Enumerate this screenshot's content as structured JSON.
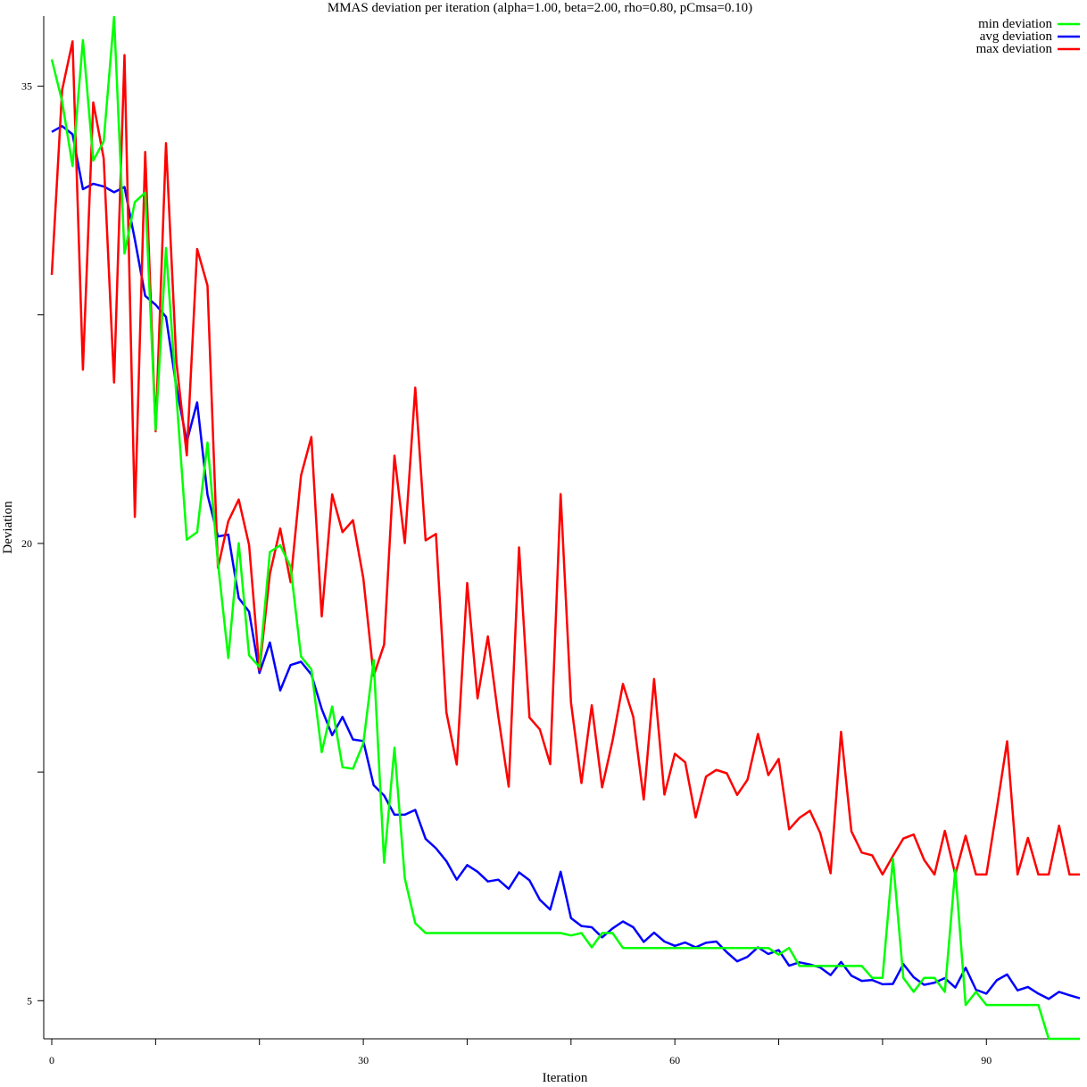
{
  "chart_data": {
    "type": "line",
    "title": "MMAS deviation per iteration (alpha=1.00, beta=2.00, rho=0.80, pCmsa=0.10)",
    "xlabel": "Iteration",
    "ylabel": "Deviation",
    "xlim": [
      0,
      99
    ],
    "ylim": [
      3.75,
      37.3
    ],
    "x_ticks": [
      0,
      10,
      20,
      30,
      40,
      50,
      60,
      70,
      80,
      90
    ],
    "x_tick_labels": [
      "0",
      "",
      "",
      "30",
      "",
      "",
      "60",
      "",
      "",
      "90"
    ],
    "y_ticks": [
      5,
      12.5,
      20,
      27.5,
      35
    ],
    "y_tick_labels": [
      "5",
      "",
      "20",
      "",
      "35"
    ],
    "grid": false,
    "legend_position": "top-right",
    "series": [
      {
        "name": "min deviation",
        "color": "#00ff00",
        "values": [
          35.88,
          34.5,
          32.38,
          36.51,
          32.56,
          33.19,
          37.27,
          29.51,
          31.2,
          31.51,
          23.73,
          29.69,
          24.87,
          20.12,
          20.37,
          23.31,
          19.37,
          16.24,
          20.01,
          16.33,
          15.95,
          19.72,
          19.94,
          19.23,
          16.29,
          15.87,
          13.15,
          14.65,
          12.66,
          12.61,
          13.44,
          16.18,
          9.53,
          13.3,
          9.01,
          7.54,
          7.22,
          7.22,
          7.22,
          7.22,
          7.22,
          7.22,
          7.22,
          7.22,
          7.22,
          7.22,
          7.22,
          7.22,
          7.22,
          7.22,
          7.14,
          7.22,
          6.75,
          7.22,
          7.22,
          6.73,
          6.73,
          6.73,
          6.73,
          6.73,
          6.73,
          6.73,
          6.73,
          6.73,
          6.73,
          6.73,
          6.73,
          6.73,
          6.73,
          6.73,
          6.51,
          6.73,
          6.14,
          6.14,
          6.14,
          6.14,
          6.14,
          6.14,
          6.14,
          5.75,
          5.75,
          9.66,
          5.75,
          5.29,
          5.75,
          5.75,
          5.29,
          9.3,
          4.86,
          5.29,
          4.86,
          4.86,
          4.86,
          4.86,
          4.86,
          4.86,
          3.75,
          3.75,
          3.75,
          3.75
        ]
      },
      {
        "name": "avg deviation",
        "color": "#0000ff",
        "values": [
          33.5,
          33.69,
          33.42,
          31.62,
          31.8,
          31.71,
          31.52,
          31.69,
          29.97,
          28.12,
          27.83,
          27.43,
          25.14,
          23.34,
          24.63,
          21.6,
          20.23,
          20.29,
          18.21,
          17.76,
          15.75,
          16.75,
          15.18,
          16.01,
          16.12,
          15.7,
          14.57,
          13.71,
          14.31,
          13.57,
          13.52,
          12.07,
          11.73,
          11.1,
          11.1,
          11.26,
          10.31,
          10.0,
          9.58,
          8.97,
          9.45,
          9.23,
          8.91,
          8.97,
          8.67,
          9.21,
          8.95,
          8.31,
          7.99,
          9.23,
          7.71,
          7.45,
          7.41,
          7.08,
          7.37,
          7.6,
          7.41,
          6.93,
          7.23,
          6.94,
          6.8,
          6.91,
          6.75,
          6.9,
          6.94,
          6.59,
          6.29,
          6.44,
          6.75,
          6.53,
          6.66,
          6.15,
          6.26,
          6.19,
          6.09,
          5.84,
          6.27,
          5.82,
          5.65,
          5.68,
          5.54,
          5.55,
          6.2,
          5.77,
          5.52,
          5.59,
          5.74,
          5.43,
          6.08,
          5.36,
          5.23,
          5.67,
          5.86,
          5.34,
          5.45,
          5.23,
          5.06,
          5.29,
          5.18,
          5.08
        ]
      },
      {
        "name": "max deviation",
        "color": "#ff0000",
        "values": [
          28.81,
          34.87,
          36.47,
          25.7,
          34.47,
          32.63,
          25.28,
          36.02,
          20.87,
          32.84,
          23.68,
          33.13,
          25.97,
          22.89,
          29.66,
          28.46,
          19.2,
          20.73,
          21.44,
          19.95,
          15.84,
          19.0,
          20.49,
          18.73,
          22.23,
          23.49,
          17.61,
          21.61,
          20.37,
          20.76,
          18.86,
          15.66,
          16.68,
          22.88,
          20.01,
          25.11,
          20.1,
          20.31,
          14.46,
          12.75,
          18.7,
          14.92,
          16.95,
          14.32,
          12.02,
          19.87,
          14.29,
          13.9,
          12.76,
          21.62,
          14.78,
          12.14,
          14.69,
          12.0,
          13.53,
          15.39,
          14.31,
          11.6,
          15.55,
          11.76,
          13.1,
          12.82,
          11.01,
          12.35,
          12.57,
          12.46,
          11.75,
          12.25,
          13.75,
          12.4,
          12.93,
          10.62,
          11.0,
          11.23,
          10.5,
          9.18,
          13.82,
          10.56,
          9.86,
          9.77,
          9.14,
          9.75,
          10.32,
          10.45,
          9.62,
          9.14,
          10.57,
          9.14,
          10.41,
          9.14,
          9.14,
          11.29,
          13.51,
          9.14,
          10.34,
          9.14,
          9.14,
          10.74,
          9.14,
          9.14
        ]
      }
    ]
  }
}
